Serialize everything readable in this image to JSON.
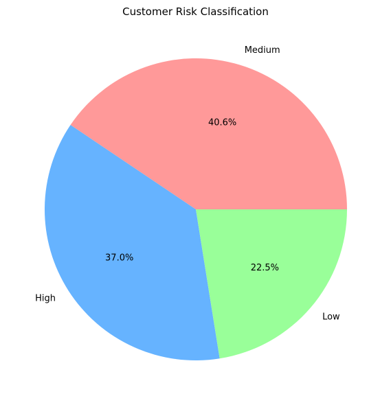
{
  "chart_data": {
    "type": "pie",
    "title": "Customer Risk Classification",
    "slices": [
      {
        "label": "Medium",
        "value": 40.6,
        "pct_label": "40.6%",
        "color": "#ff9999"
      },
      {
        "label": "High",
        "value": 37.0,
        "pct_label": "37.0%",
        "color": "#66b3ff"
      },
      {
        "label": "Low",
        "value": 22.5,
        "pct_label": "22.5%",
        "color": "#99ff99"
      }
    ],
    "start_angle_deg": 0,
    "direction": "counterclockwise",
    "legend": "none"
  }
}
